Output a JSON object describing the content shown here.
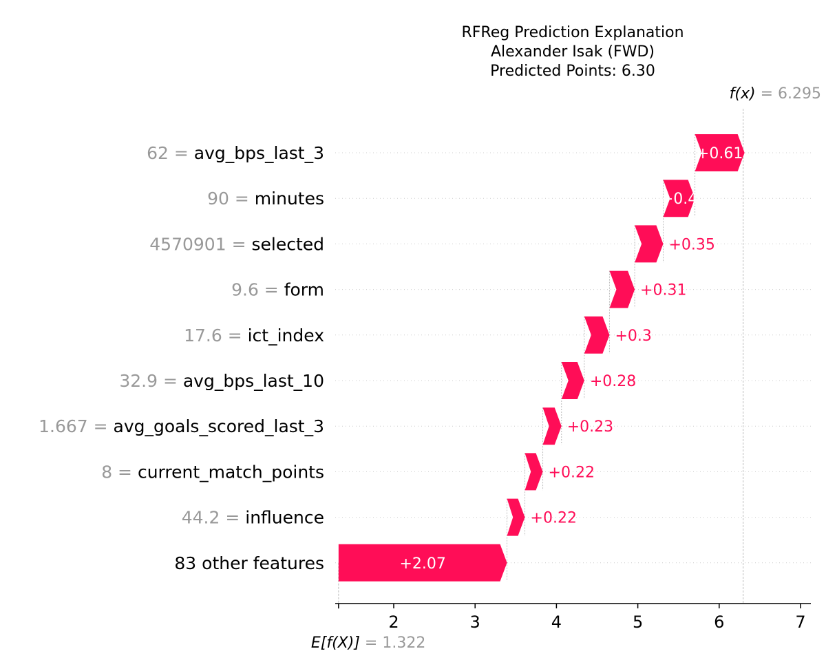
{
  "chart_data": {
    "type": "waterfall",
    "title_lines": [
      "RFReg Prediction Explanation",
      "Alexander Isak (FWD)",
      "Predicted Points: 6.30"
    ],
    "base_value": 1.322,
    "base_label": "E[f(X)]",
    "base_value_text": "1.322",
    "fx_value": 6.295,
    "fx_label": "f(x)",
    "fx_value_text": "6.295",
    "xlim": [
      1.322,
      7.1
    ],
    "xticks": [
      2,
      3,
      4,
      5,
      6,
      7
    ],
    "positive_color": "#ff0d57",
    "negative_color": "#1e88e5",
    "features": [
      {
        "value": "62",
        "name": "avg_bps_last_3",
        "contribution": 0.61,
        "label": "+0.61"
      },
      {
        "value": "90",
        "name": "minutes",
        "contribution": 0.39,
        "label": "+0.4"
      },
      {
        "value": "4570901",
        "name": "selected",
        "contribution": 0.35,
        "label": "+0.35"
      },
      {
        "value": "9.6",
        "name": "form",
        "contribution": 0.31,
        "label": "+0.31"
      },
      {
        "value": "17.6",
        "name": "ict_index",
        "contribution": 0.31,
        "label": "+0.3"
      },
      {
        "value": "32.9",
        "name": "avg_bps_last_10",
        "contribution": 0.28,
        "label": "+0.28"
      },
      {
        "value": "1.667",
        "name": "avg_goals_scored_last_3",
        "contribution": 0.23,
        "label": "+0.23"
      },
      {
        "value": "8",
        "name": "current_match_points",
        "contribution": 0.22,
        "label": "+0.22"
      },
      {
        "value": "44.2",
        "name": "influence",
        "contribution": 0.22,
        "label": "+0.22"
      },
      {
        "value": "",
        "name": "83 other features",
        "contribution": 2.07,
        "label": "+2.07"
      }
    ]
  }
}
